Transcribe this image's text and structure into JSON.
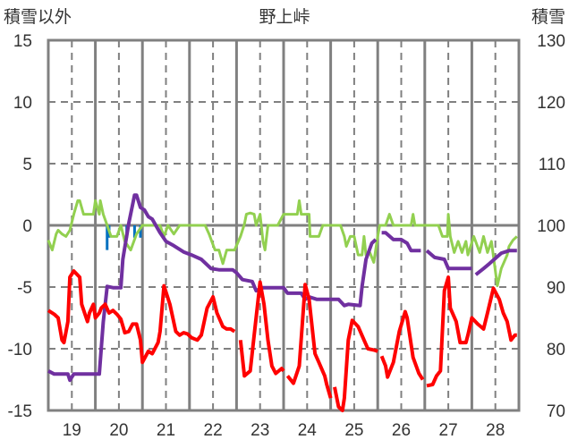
{
  "chart_data": {
    "type": "line",
    "title": "野上峠",
    "ylabel_left": "積雪以外",
    "ylabel_right": "積雪",
    "x_unit": "hours since 19th 00:00",
    "xlim": [
      0,
      240
    ],
    "ylim_left": [
      -15,
      15
    ],
    "ylim_right": [
      70,
      130
    ],
    "yticks_left": [
      "15",
      "10",
      "5",
      "0",
      "-5",
      "-10",
      "-15"
    ],
    "yticks_right": [
      "130",
      "120",
      "110",
      "100",
      "90",
      "80",
      "70"
    ],
    "xtick_labels": [
      "19",
      "20",
      "21",
      "22",
      "23",
      "24",
      "25",
      "26",
      "27",
      "28"
    ],
    "grid": true,
    "colors": {
      "red": "#ff0000",
      "purple": "#7030a0",
      "green": "#92d050",
      "blue": "#0070c0",
      "grid": "#808080"
    },
    "series": [
      {
        "name": "red",
        "axis": "left",
        "points": [
          [
            0,
            -6.9
          ],
          [
            3,
            -7.2
          ],
          [
            5,
            -7.5
          ],
          [
            7,
            -9.3
          ],
          [
            8,
            -9.5
          ],
          [
            10,
            -7.8
          ],
          [
            11,
            -4.2
          ],
          [
            13,
            -3.7
          ],
          [
            16,
            -4.2
          ],
          [
            17,
            -6.4
          ],
          [
            20,
            -7.8
          ],
          [
            21,
            -7.1
          ],
          [
            23,
            -6.4
          ],
          [
            24,
            -7.5
          ],
          [
            26,
            -7.1
          ],
          [
            27,
            -6.7
          ],
          [
            29,
            -6.4
          ],
          [
            31,
            -7.1
          ],
          [
            33,
            -6.9
          ],
          [
            35,
            -7.2
          ],
          [
            37,
            -7.6
          ],
          [
            39,
            -8.7
          ],
          [
            41,
            -8.6
          ],
          [
            43,
            -8.0
          ],
          [
            45,
            -8.0
          ],
          [
            47,
            -9.3
          ],
          [
            48,
            -11.1
          ],
          [
            51,
            -10.2
          ],
          [
            53,
            -10.4
          ],
          [
            56,
            -9.5
          ],
          [
            57,
            -8.6
          ],
          [
            59,
            -4.9
          ],
          [
            62,
            -6.4
          ],
          [
            65,
            -8.6
          ],
          [
            67,
            -8.9
          ],
          [
            69,
            -8.7
          ],
          [
            71,
            -8.8
          ],
          [
            73,
            -9.1
          ],
          [
            76,
            -9.3
          ],
          [
            78,
            -8.9
          ],
          [
            81,
            -6.7
          ],
          [
            84,
            -5.8
          ],
          [
            86,
            -7.1
          ],
          [
            89,
            -8.2
          ],
          [
            91,
            -8.4
          ],
          [
            93,
            -8.4
          ],
          [
            95,
            -8.6
          ],
          null,
          [
            98,
            -9.3
          ],
          [
            100,
            -12.2
          ],
          [
            103,
            -11.8
          ],
          [
            105,
            -8.9
          ],
          [
            108,
            -4.6
          ],
          [
            110,
            -6.4
          ],
          [
            112,
            -9.3
          ],
          [
            114,
            -11.4
          ],
          [
            116,
            -12.0
          ],
          [
            119,
            -11.6
          ],
          [
            120,
            -11.8
          ],
          null,
          [
            122,
            -12.2
          ],
          [
            125,
            -12.8
          ],
          [
            128,
            -11.4
          ],
          [
            131,
            -4.8
          ],
          [
            133,
            -6.0
          ],
          [
            136,
            -10.4
          ],
          [
            138,
            -11.1
          ],
          [
            141,
            -12.2
          ],
          [
            142,
            -12.9
          ],
          [
            144,
            -14.0
          ],
          null,
          [
            146,
            -13.1
          ],
          [
            148,
            -14.7
          ],
          [
            150,
            -15
          ],
          [
            151,
            -14.0
          ],
          [
            153,
            -9.3
          ],
          [
            155,
            -7.7
          ],
          [
            158,
            -8.2
          ],
          [
            161,
            -9.3
          ],
          [
            163,
            -10.0
          ],
          [
            166,
            -10.1
          ],
          [
            168,
            -10.2
          ],
          null,
          [
            170,
            -10.6
          ],
          [
            172,
            -11.4
          ],
          [
            173,
            -12.3
          ],
          [
            176,
            -11.1
          ],
          [
            179,
            -8.6
          ],
          [
            182,
            -7.0
          ],
          [
            183,
            -7.5
          ],
          [
            186,
            -10.7
          ],
          [
            189,
            -12.0
          ],
          [
            191,
            -12.5
          ],
          null,
          [
            193,
            -13.0
          ],
          [
            196,
            -12.9
          ],
          [
            198,
            -12.2
          ],
          [
            200,
            -11.8
          ],
          [
            202,
            -5.3
          ],
          [
            204,
            -4.2
          ],
          [
            205,
            -6.7
          ],
          [
            208,
            -7.8
          ],
          [
            210,
            -9.5
          ],
          [
            213,
            -9.5
          ],
          [
            214,
            -8.9
          ],
          [
            216,
            -7.5
          ],
          [
            219,
            -8.0
          ],
          [
            222,
            -8.4
          ],
          [
            224,
            -7.1
          ],
          [
            227,
            -5.1
          ],
          [
            230,
            -6.0
          ],
          [
            232,
            -7.1
          ],
          [
            234,
            -7.8
          ],
          [
            236,
            -9.3
          ],
          [
            238,
            -8.9
          ],
          [
            239,
            -8.9
          ]
        ]
      },
      {
        "name": "purple",
        "axis": "right",
        "points": [
          [
            0,
            76.4
          ],
          [
            3,
            75.9
          ],
          [
            10,
            75.9
          ],
          [
            11,
            74.9
          ],
          [
            13,
            75.9
          ],
          [
            26,
            75.9
          ],
          [
            28,
            84.3
          ],
          [
            30,
            90.1
          ],
          [
            33,
            89.9
          ],
          [
            37,
            89.9
          ],
          [
            38,
            94.5
          ],
          [
            41,
            100.3
          ],
          [
            44,
            104.9
          ],
          [
            45,
            104.9
          ],
          [
            47,
            102.9
          ],
          [
            49,
            102.5
          ],
          [
            51,
            101.4
          ],
          [
            53,
            101
          ],
          [
            57,
            98.8
          ],
          [
            60,
            97.4
          ],
          [
            64,
            96.7
          ],
          [
            69,
            95.7
          ],
          [
            73,
            95.2
          ],
          [
            78,
            94.5
          ],
          [
            83,
            93
          ],
          [
            87,
            92.8
          ],
          [
            94,
            92.8
          ],
          [
            96,
            92.3
          ],
          [
            99,
            91.2
          ],
          [
            104,
            90.9
          ],
          [
            106,
            89.4
          ],
          [
            109,
            89.9
          ],
          [
            120,
            89.9
          ],
          [
            122,
            89
          ],
          [
            129,
            89
          ],
          [
            131,
            88
          ],
          [
            133,
            88.4
          ],
          [
            137,
            88
          ],
          [
            148,
            88
          ],
          [
            151,
            87
          ],
          [
            153,
            87.2
          ],
          [
            159,
            87
          ],
          [
            160,
            90.1
          ],
          [
            162,
            94.5
          ],
          [
            165,
            97.1
          ],
          [
            167,
            97.7
          ],
          null,
          [
            170,
            98.8
          ],
          [
            172,
            98.8
          ],
          [
            176,
            97.7
          ],
          [
            180,
            97.7
          ],
          [
            183,
            97.1
          ],
          [
            185,
            95.9
          ],
          [
            190,
            95.9
          ],
          null,
          [
            193,
            95.9
          ],
          [
            197,
            94.8
          ],
          [
            202,
            94.5
          ],
          [
            204,
            93
          ],
          [
            216,
            93
          ],
          null,
          [
            218,
            92
          ],
          [
            222,
            93
          ],
          [
            225,
            93.8
          ],
          [
            231,
            95.5
          ],
          [
            235,
            95.9
          ],
          [
            239,
            95.9
          ]
        ]
      },
      {
        "name": "green",
        "axis": "left",
        "points": [
          [
            0,
            -1.2
          ],
          [
            2,
            -2
          ],
          [
            4,
            -0.7
          ],
          [
            5,
            -0.4
          ],
          [
            7,
            -0.7
          ],
          [
            9,
            -0.9
          ],
          [
            11,
            -0.4
          ],
          [
            13,
            0.9
          ],
          [
            15,
            2
          ],
          [
            16,
            2
          ],
          [
            18,
            0.9
          ],
          [
            23,
            0.9
          ],
          [
            24,
            2
          ],
          [
            26,
            0.9
          ],
          [
            26.5,
            2
          ],
          [
            28,
            0.9
          ],
          [
            30,
            0
          ],
          [
            32,
            -0.9
          ],
          [
            35,
            -0.9
          ],
          [
            37,
            0
          ],
          [
            39,
            -1.3
          ],
          [
            42,
            -2
          ],
          [
            45,
            -0.7
          ],
          [
            48,
            0
          ],
          [
            57,
            0
          ],
          [
            59,
            -0.9
          ],
          [
            61,
            0
          ],
          [
            64,
            -0.7
          ],
          [
            67,
            0
          ],
          [
            80,
            0
          ],
          [
            82,
            -0.7
          ],
          [
            85,
            -2
          ],
          [
            87,
            -2
          ],
          [
            89,
            -3.1
          ],
          [
            91,
            -2
          ],
          [
            95,
            -2
          ],
          [
            98,
            -0.9
          ],
          [
            100,
            0.1
          ],
          [
            101,
            0.9
          ],
          [
            103,
            1
          ],
          [
            105,
            0.9
          ],
          [
            106,
            0
          ],
          [
            108,
            0.9
          ],
          [
            109.5,
            -1.3
          ],
          [
            110.5,
            -2
          ],
          [
            112,
            0
          ],
          [
            117,
            0
          ],
          [
            120,
            0.9
          ],
          [
            127,
            0.9
          ],
          [
            128,
            2
          ],
          [
            129,
            0.9
          ],
          [
            133,
            0.9
          ],
          [
            133.5,
            -0.9
          ],
          [
            138,
            -0.9
          ],
          [
            140,
            0
          ],
          [
            149,
            0
          ],
          [
            151,
            -0.9
          ],
          [
            152,
            -1.7
          ],
          [
            154,
            -0.9
          ],
          [
            156,
            -0.9
          ],
          [
            158,
            -2.4
          ],
          [
            160,
            -2.4
          ],
          [
            161,
            -0.9
          ],
          [
            162,
            -2.4
          ],
          [
            164,
            -2.2
          ],
          [
            166,
            -3
          ],
          [
            168,
            -0.9
          ],
          [
            169,
            0
          ],
          [
            172,
            0
          ],
          [
            174,
            0.9
          ],
          [
            176,
            0
          ],
          [
            185,
            0
          ],
          [
            186,
            0.9
          ],
          [
            187,
            0
          ],
          [
            199,
            0
          ],
          [
            201,
            -0.9
          ],
          [
            203.5,
            -0.9
          ],
          [
            204,
            0.9
          ],
          [
            205,
            -0.9
          ],
          [
            207,
            -2.2
          ],
          [
            209,
            -1.3
          ],
          [
            211,
            -2.2
          ],
          [
            213,
            -1.3
          ],
          [
            214,
            -2.4
          ],
          [
            217,
            -0.9
          ],
          [
            220,
            -2.2
          ],
          [
            222,
            -0.9
          ],
          [
            224,
            -2.2
          ],
          [
            226,
            -1.3
          ],
          [
            229,
            -4.9
          ],
          [
            231,
            -3.5
          ],
          [
            234,
            -2.4
          ],
          [
            235,
            -1.7
          ],
          [
            237,
            -1.2
          ],
          [
            239,
            -0.9
          ]
        ]
      }
    ],
    "bars": {
      "name": "blue",
      "axis": "left",
      "points": [
        [
          30,
          -2
        ],
        [
          31,
          -1
        ],
        [
          40,
          -1
        ],
        [
          44,
          -1
        ],
        [
          47,
          -1
        ]
      ]
    }
  }
}
